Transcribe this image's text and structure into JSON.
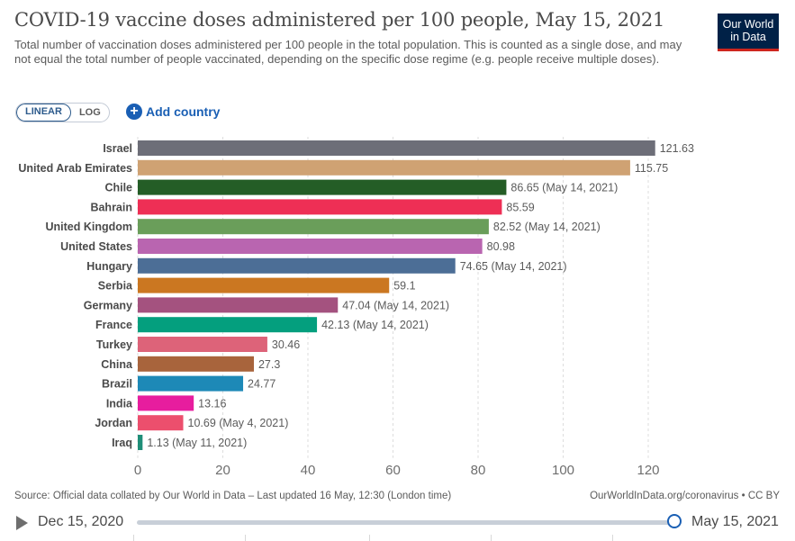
{
  "header": {
    "title": "COVID-19 vaccine doses administered per 100 people, May 15, 2021",
    "subtitle": "Total number of vaccination doses administered per 100 people in the total population. This is counted as a single dose, and may not equal the total number of people vaccinated, depending on the specific dose regime (e.g. people receive multiple doses).",
    "logo_line1": "Our World",
    "logo_line2": "in Data"
  },
  "controls": {
    "linear_label": "LINEAR",
    "log_label": "LOG",
    "add_country_label": "Add country",
    "plus_glyph": "+"
  },
  "chart_data": {
    "type": "bar",
    "orientation": "horizontal",
    "xlim": [
      0,
      120
    ],
    "xticks": [
      0,
      20,
      40,
      60,
      80,
      100,
      120
    ],
    "grid": true,
    "bars": [
      {
        "label": "Israel",
        "value": 121.63,
        "value_label": "121.63",
        "color": "#6d6e78"
      },
      {
        "label": "United Arab Emirates",
        "value": 115.75,
        "value_label": "115.75",
        "color": "#cfa273"
      },
      {
        "label": "Chile",
        "value": 86.65,
        "value_label": "86.65 (May 14, 2021)",
        "color": "#245d26"
      },
      {
        "label": "Bahrain",
        "value": 85.59,
        "value_label": "85.59",
        "color": "#ee2f55"
      },
      {
        "label": "United Kingdom",
        "value": 82.52,
        "value_label": "82.52 (May 14, 2021)",
        "color": "#6a9e5a"
      },
      {
        "label": "United States",
        "value": 80.98,
        "value_label": "80.98",
        "color": "#b965b0"
      },
      {
        "label": "Hungary",
        "value": 74.65,
        "value_label": "74.65 (May 14, 2021)",
        "color": "#4c6e96"
      },
      {
        "label": "Serbia",
        "value": 59.1,
        "value_label": "59.1",
        "color": "#cb7721"
      },
      {
        "label": "Germany",
        "value": 47.04,
        "value_label": "47.04 (May 14, 2021)",
        "color": "#a4527f"
      },
      {
        "label": "France",
        "value": 42.13,
        "value_label": "42.13 (May 14, 2021)",
        "color": "#049f7e"
      },
      {
        "label": "Turkey",
        "value": 30.46,
        "value_label": "30.46",
        "color": "#dd6379"
      },
      {
        "label": "China",
        "value": 27.3,
        "value_label": "27.3",
        "color": "#a8643c"
      },
      {
        "label": "Brazil",
        "value": 24.77,
        "value_label": "24.77",
        "color": "#1d89b7"
      },
      {
        "label": "India",
        "value": 13.16,
        "value_label": "13.16",
        "color": "#e71d9e"
      },
      {
        "label": "Jordan",
        "value": 10.69,
        "value_label": "10.69 (May 4, 2021)",
        "color": "#ec4f6d"
      },
      {
        "label": "Iraq",
        "value": 1.13,
        "value_label": "1.13 (May 11, 2021)",
        "color": "#1f8e78"
      }
    ]
  },
  "footer": {
    "source": "Source: Official data collated by Our World in Data – Last updated 16 May, 12:30 (London time)",
    "credit": "OurWorldInData.org/coronavirus • CC BY"
  },
  "timeline": {
    "start_label": "Dec 15, 2020",
    "end_label": "May 15, 2021",
    "position": 1.0
  }
}
